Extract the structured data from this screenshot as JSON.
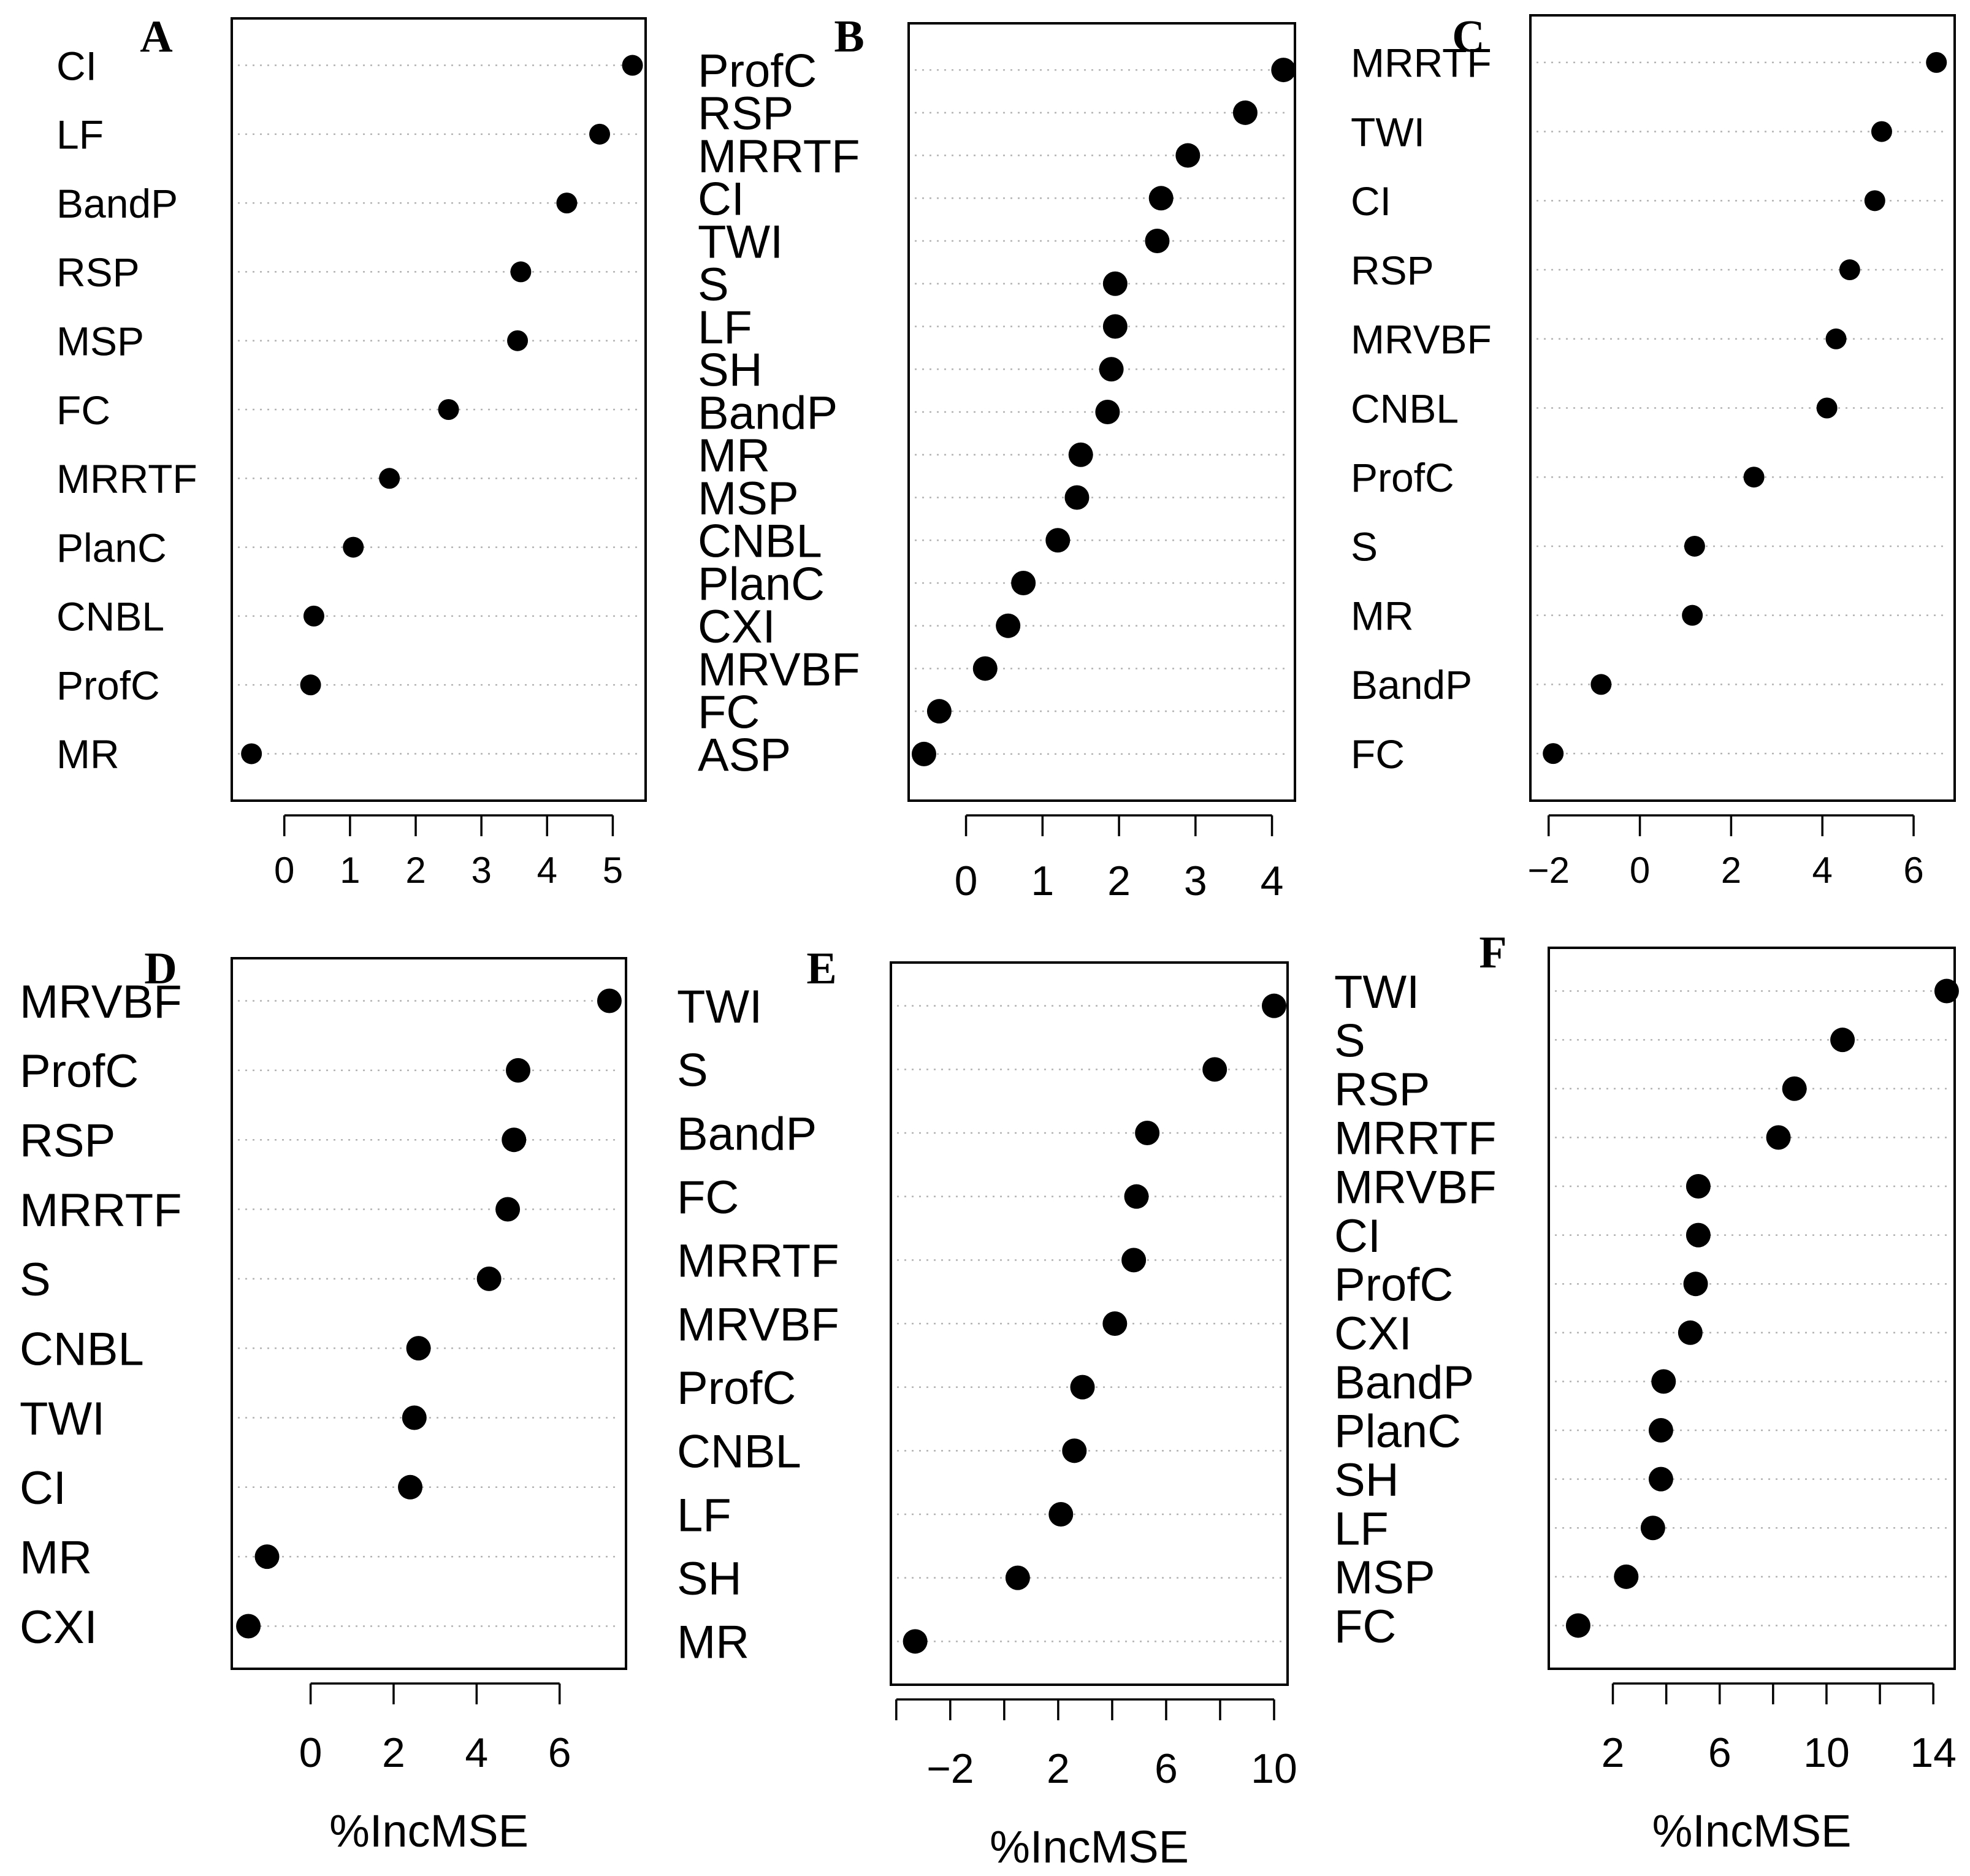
{
  "chart_data": [
    {
      "type": "scatter",
      "panel": "A",
      "title": "A",
      "xlabel": "",
      "xlim": [
        -0.8,
        5.5
      ],
      "xticks": [
        0,
        1,
        2,
        3,
        4,
        5
      ],
      "xticklabels": [
        "0",
        "1",
        "2",
        "3",
        "4",
        "5"
      ],
      "variables": [
        "CI",
        "LF",
        "BandP",
        "RSP",
        "MSP",
        "FC",
        "MRRTF",
        "PlanC",
        "CNBL",
        "ProfC",
        "MR"
      ],
      "values": [
        5.3,
        4.8,
        4.3,
        3.6,
        3.55,
        2.5,
        1.6,
        1.05,
        0.45,
        0.4,
        -0.5
      ]
    },
    {
      "type": "scatter",
      "panel": "B",
      "title": "B",
      "xlabel": "",
      "xlim": [
        -0.75,
        4.3
      ],
      "xticks": [
        0,
        1,
        2,
        3,
        4
      ],
      "xticklabels": [
        "0",
        "1",
        "2",
        "3",
        "4"
      ],
      "variables": [
        "ProfC",
        "RSP",
        "MRRTF",
        "CI",
        "TWI",
        "S",
        "LF",
        "SH",
        "BandP",
        "MR",
        "MSP",
        "CNBL",
        "PlanC",
        "CXI",
        "MRVBF",
        "FC",
        "ASP"
      ],
      "values": [
        4.15,
        3.65,
        2.9,
        2.55,
        2.5,
        1.95,
        1.95,
        1.9,
        1.85,
        1.5,
        1.45,
        1.2,
        0.75,
        0.55,
        0.25,
        -0.35,
        -0.55
      ]
    },
    {
      "type": "scatter",
      "panel": "C",
      "title": "C",
      "xlabel": "",
      "xlim": [
        -2.4,
        6.9
      ],
      "xticks": [
        -2,
        0,
        2,
        4,
        6
      ],
      "xticklabels": [
        "−2",
        "0",
        "2",
        "4",
        "6"
      ],
      "variables": [
        "MRRTF",
        "TWI",
        "CI",
        "RSP",
        "MRVBF",
        "CNBL",
        "ProfC",
        "S",
        "MR",
        "BandP",
        "FC"
      ],
      "values": [
        6.5,
        5.3,
        5.15,
        4.6,
        4.3,
        4.1,
        2.5,
        1.2,
        1.15,
        -0.85,
        -1.9
      ]
    },
    {
      "type": "scatter",
      "panel": "D",
      "title": "D",
      "xlabel": "%IncMSE",
      "xlim": [
        -1.9,
        7.6
      ],
      "xticks": [
        0,
        2,
        4,
        6
      ],
      "xticklabels": [
        "0",
        "2",
        "4",
        "6"
      ],
      "variables": [
        "MRVBF",
        "ProfC",
        "RSP",
        "MRRTF",
        "S",
        "CNBL",
        "TWI",
        "CI",
        "MR",
        "CXI"
      ],
      "values": [
        7.2,
        5.0,
        4.9,
        4.75,
        4.3,
        2.6,
        2.5,
        2.4,
        -1.05,
        -1.5
      ]
    },
    {
      "type": "scatter",
      "panel": "E",
      "title": "E",
      "xlabel": "%IncMSE",
      "xlim": [
        -4.2,
        10.5
      ],
      "xticks": [
        -2,
        2,
        6,
        10
      ],
      "xticklabels": [
        "−2",
        "2",
        "6",
        "10"
      ],
      "minor_xticks": [
        -4,
        0,
        4,
        8
      ],
      "variables": [
        "TWI",
        "S",
        "BandP",
        "FC",
        "MRRTF",
        "MRVBF",
        "ProfC",
        "CNBL",
        "LF",
        "SH",
        "MR"
      ],
      "values": [
        10.0,
        7.8,
        5.3,
        4.9,
        4.8,
        4.1,
        2.9,
        2.6,
        2.1,
        0.5,
        -3.3
      ]
    },
    {
      "type": "scatter",
      "panel": "F",
      "title": "F",
      "xlabel": "%IncMSE",
      "xlim": [
        -0.4,
        14.8
      ],
      "xticks": [
        2,
        6,
        10,
        14
      ],
      "xticklabels": [
        "2",
        "6",
        "10",
        "14"
      ],
      "minor_xticks": [
        4,
        8,
        12
      ],
      "variables": [
        "TWI",
        "S",
        "RSP",
        "MRRTF",
        "MRVBF",
        "CI",
        "ProfC",
        "CXI",
        "BandP",
        "PlanC",
        "SH",
        "LF",
        "MSP",
        "FC"
      ],
      "values": [
        14.5,
        10.6,
        8.8,
        8.2,
        5.2,
        5.2,
        5.1,
        4.9,
        3.9,
        3.8,
        3.8,
        3.5,
        2.5,
        0.7
      ]
    }
  ]
}
